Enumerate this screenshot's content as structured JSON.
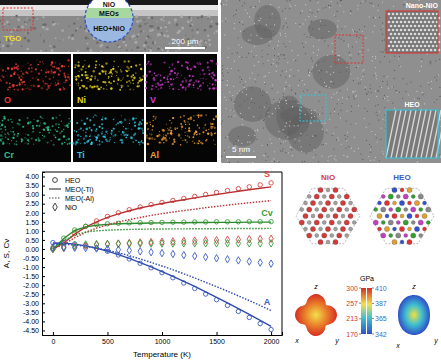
{
  "chart_data": {
    "type": "line",
    "x": [
      0,
      100,
      200,
      300,
      400,
      500,
      600,
      700,
      800,
      900,
      1000,
      1100,
      1200,
      1300,
      1400,
      1500,
      1600,
      1700,
      1800,
      1900,
      2000
    ],
    "xlim": [
      -100,
      2100
    ],
    "xticks": [
      0,
      500,
      1000,
      1500,
      2000
    ],
    "ylim": [
      -4.75,
      4.25
    ],
    "yticks": [
      {
        "value": -4.5,
        "label": "-4.50"
      },
      {
        "value": -4,
        "label": "-4.00"
      },
      {
        "value": -3.5,
        "label": "-3.50"
      },
      {
        "value": -3,
        "label": "-3.00"
      },
      {
        "value": -2.5,
        "label": "-2.50"
      },
      {
        "value": -2,
        "label": "-2.00"
      },
      {
        "value": -1.5,
        "label": "-1.50"
      },
      {
        "value": -1,
        "label": "-1.00"
      },
      {
        "value": -0.5,
        "label": "-0.50"
      },
      {
        "value": 0,
        "label": "0.00"
      },
      {
        "value": 0.5,
        "label": "0.50"
      },
      {
        "value": 1,
        "label": "1.00"
      },
      {
        "value": 1.5,
        "label": "1.50"
      },
      {
        "value": 2,
        "label": "2.00"
      },
      {
        "value": 2.5,
        "label": "2.50"
      },
      {
        "value": 3,
        "label": "3.00"
      },
      {
        "value": 3.5,
        "label": "3.50"
      },
      {
        "value": 4,
        "label": "4.00"
      }
    ],
    "x_label": "Temperature (K)",
    "y_label": "A, S, Cv",
    "grid": false,
    "legend": "upper left",
    "annotations": [
      {
        "text": "S",
        "color": "#d64545"
      },
      {
        "text": "Cv",
        "color": "#3a9d3a"
      },
      {
        "text": "A",
        "color": "#3b5cc4"
      }
    ],
    "series": [
      {
        "name": "HEO",
        "color": "#d64545",
        "marker": "circle",
        "values": [
          0.0,
          0.35,
          0.85,
          1.25,
          1.55,
          1.8,
          2.0,
          2.17,
          2.32,
          2.45,
          2.57,
          2.68,
          2.79,
          2.9,
          3.01,
          3.12,
          3.23,
          3.33,
          3.43,
          3.54,
          3.65
        ]
      },
      {
        "name": "HEO",
        "color": "#3a9d3a",
        "marker": "circle",
        "values": [
          0.0,
          0.6,
          1.05,
          1.25,
          1.34,
          1.39,
          1.42,
          1.44,
          1.45,
          1.46,
          1.47,
          1.48,
          1.48,
          1.49,
          1.49,
          1.5,
          1.5,
          1.5,
          1.51,
          1.51,
          1.51
        ]
      },
      {
        "name": "HEO",
        "color": "#3b5cc4",
        "marker": "circle",
        "values": [
          0.35,
          0.34,
          0.28,
          0.18,
          0.04,
          -0.13,
          -0.33,
          -0.55,
          -0.79,
          -1.04,
          -1.31,
          -1.59,
          -1.88,
          -2.18,
          -2.49,
          -2.8,
          -3.12,
          -3.45,
          -3.78,
          -4.12,
          -4.45
        ]
      },
      {
        "name": "MEO(-Ti)",
        "color": "#b83232",
        "line_style": "solid",
        "values": [
          0.0,
          0.33,
          0.82,
          1.21,
          1.5,
          1.74,
          1.94,
          2.11,
          2.26,
          2.39,
          2.51,
          2.62,
          2.72,
          2.82,
          2.92,
          3.01,
          3.1,
          3.19,
          3.27,
          3.35,
          3.43
        ]
      },
      {
        "name": "MEO(-Ti)",
        "color": "#2f8a2f",
        "line_style": "solid",
        "values": [
          0.0,
          0.58,
          1.02,
          1.22,
          1.31,
          1.36,
          1.39,
          1.41,
          1.42,
          1.43,
          1.44,
          1.45,
          1.45,
          1.46,
          1.46,
          1.47,
          1.47,
          1.47,
          1.48,
          1.48,
          1.48
        ]
      },
      {
        "name": "MEO(-Ti)",
        "color": "#2f4bb0",
        "line_style": "solid",
        "values": [
          0.33,
          0.32,
          0.27,
          0.17,
          0.04,
          -0.12,
          -0.31,
          -0.52,
          -0.75,
          -0.99,
          -1.25,
          -1.51,
          -1.79,
          -2.07,
          -2.37,
          -2.67,
          -2.98,
          -3.29,
          -3.61,
          -3.94,
          -4.27
        ]
      },
      {
        "name": "MEO(-Al)",
        "color": "#b83232",
        "line_style": "dotted",
        "values": [
          0.0,
          0.25,
          0.62,
          0.92,
          1.15,
          1.33,
          1.49,
          1.62,
          1.74,
          1.85,
          1.95,
          2.04,
          2.12,
          2.2,
          2.28,
          2.35,
          2.42,
          2.49,
          2.55,
          2.61,
          2.67
        ]
      },
      {
        "name": "MEO(-Al)",
        "color": "#2f8a2f",
        "line_style": "dotted",
        "values": [
          0.0,
          0.45,
          0.78,
          0.93,
          1.0,
          1.04,
          1.06,
          1.08,
          1.09,
          1.1,
          1.1,
          1.11,
          1.11,
          1.12,
          1.12,
          1.12,
          1.13,
          1.13,
          1.13,
          1.13,
          1.14
        ]
      },
      {
        "name": "MEO(-Al)",
        "color": "#2f4bb0",
        "line_style": "dotted",
        "values": [
          0.27,
          0.26,
          0.22,
          0.15,
          0.05,
          -0.07,
          -0.21,
          -0.37,
          -0.55,
          -0.74,
          -0.94,
          -1.15,
          -1.37,
          -1.6,
          -1.84,
          -2.08,
          -2.33,
          -2.59,
          -2.85,
          -3.12,
          -3.4
        ]
      },
      {
        "name": "NiO",
        "color": "#d64545",
        "marker": "diamond",
        "values": [
          0.0,
          0.05,
          0.12,
          0.18,
          0.23,
          0.27,
          0.3,
          0.33,
          0.36,
          0.38,
          0.4,
          0.42,
          0.44,
          0.46,
          0.48,
          0.49,
          0.51,
          0.52,
          0.54,
          0.55,
          0.56
        ]
      },
      {
        "name": "NiO",
        "color": "#3a9d3a",
        "marker": "diamond",
        "values": [
          0.0,
          0.12,
          0.21,
          0.25,
          0.27,
          0.28,
          0.29,
          0.29,
          0.3,
          0.3,
          0.3,
          0.3,
          0.31,
          0.31,
          0.31,
          0.31,
          0.31,
          0.31,
          0.31,
          0.31,
          0.31
        ]
      },
      {
        "name": "NiO",
        "color": "#3b5cc4",
        "marker": "diamond",
        "values": [
          0.08,
          0.08,
          0.07,
          0.05,
          0.03,
          0.0,
          -0.04,
          -0.08,
          -0.13,
          -0.18,
          -0.23,
          -0.28,
          -0.34,
          -0.39,
          -0.45,
          -0.51,
          -0.57,
          -0.63,
          -0.69,
          -0.75,
          -0.81
        ]
      }
    ]
  },
  "panels": {
    "sem": {
      "layers": [
        "NiO",
        "MEOs",
        "HEO+NiO"
      ],
      "tgo": "TGO",
      "scale_bar": "200 μm",
      "maps": [
        {
          "element": "O",
          "color": "#e53935"
        },
        {
          "element": "Ni",
          "color": "#e6d323"
        },
        {
          "element": "V",
          "color": "#d13bd1"
        },
        {
          "element": "Cr",
          "color": "#2fc48a"
        },
        {
          "element": "Ti",
          "color": "#2ec8e0"
        },
        {
          "element": "Al",
          "color": "#f0a030"
        }
      ]
    },
    "tem": {
      "labels": [
        "Nano-NiO",
        "HEO"
      ],
      "scale_bar": "5 nm"
    },
    "crystals": [
      "NiO",
      "HEO"
    ],
    "elastic": {
      "unit": "GPa",
      "axes": [
        "z",
        "x",
        "y"
      ],
      "colorbars": [
        {
          "range": [
            170,
            300
          ],
          "ticks": [
            300,
            257,
            213,
            170
          ],
          "color": "#d63a2a"
        },
        {
          "range": [
            342,
            410
          ],
          "ticks": [
            410,
            387,
            365,
            342
          ],
          "color": "#2f6fd0"
        }
      ]
    }
  }
}
